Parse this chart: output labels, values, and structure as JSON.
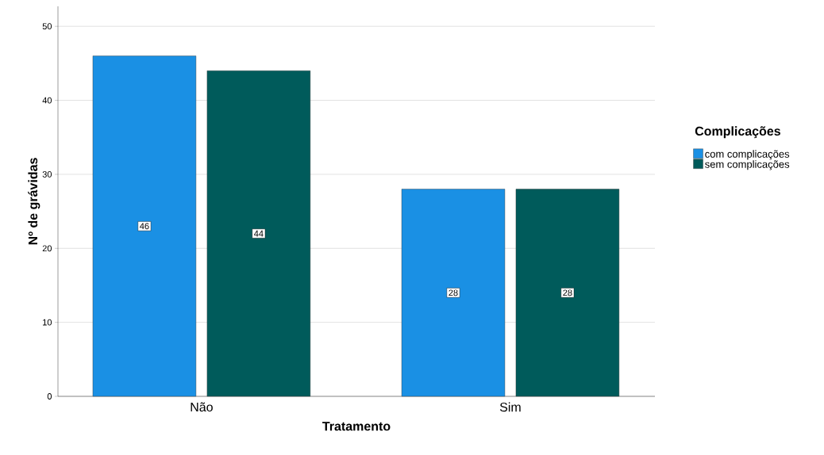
{
  "chart_data": {
    "type": "bar",
    "xlabel": "Tratamento",
    "ylabel": "Nº de grávidas",
    "legend_title": "Complicações",
    "categories": [
      "Não",
      "Sim"
    ],
    "series": [
      {
        "name": "com complicações",
        "color": "#1a90e4",
        "values": [
          46,
          28
        ],
        "value_labels": [
          "46",
          "28"
        ]
      },
      {
        "name": "sem complicações",
        "color": "#005b5b",
        "values": [
          44,
          28
        ],
        "value_labels": [
          "44",
          "28"
        ]
      }
    ],
    "ylim": [
      0,
      52.7
    ],
    "yticks": [
      0,
      10,
      20,
      30,
      40,
      50
    ],
    "grid": "y",
    "legend": "right"
  }
}
